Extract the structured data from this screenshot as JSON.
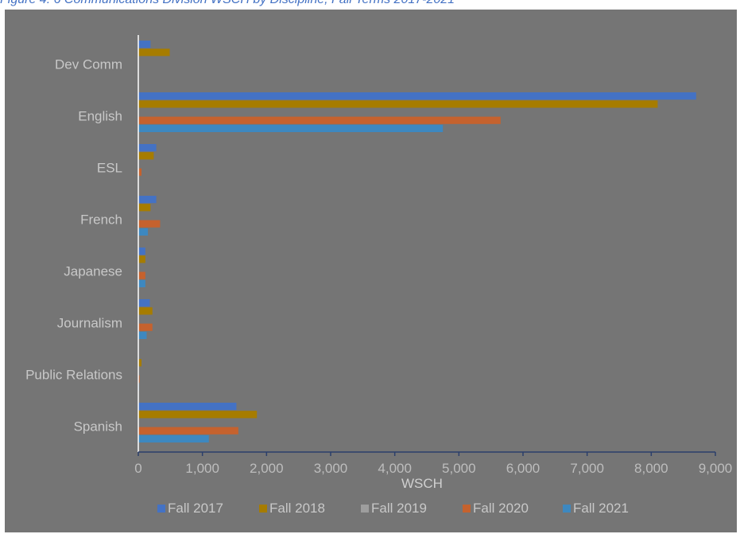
{
  "caption": "Figure 4: 6 Communications Division WSCH by Discipline, Fall Terms 2017-2021",
  "chart_data": {
    "type": "bar",
    "orientation": "horizontal",
    "title": "",
    "xlabel": "WSCH",
    "ylabel": "",
    "xlim": [
      0,
      9000
    ],
    "xticks": [
      0,
      1000,
      2000,
      3000,
      4000,
      5000,
      6000,
      7000,
      8000,
      9000
    ],
    "xtick_labels": [
      "0",
      "1,000",
      "2,000",
      "3,000",
      "4,000",
      "5,000",
      "6,000",
      "7,000",
      "8,000",
      "9,000"
    ],
    "grid": false,
    "legend_position": "bottom",
    "categories": [
      "Dev Comm",
      "English",
      "ESL",
      "French",
      "Japanese",
      "Journalism",
      "Public Relations",
      "Spanish"
    ],
    "series": [
      {
        "name": "Fall 2017",
        "color": "#4472c4",
        "values": [
          190,
          8700,
          280,
          280,
          110,
          180,
          0,
          1530
        ]
      },
      {
        "name": "Fall 2018",
        "color": "#a67c00",
        "values": [
          490,
          8100,
          240,
          190,
          110,
          220,
          50,
          1850
        ]
      },
      {
        "name": "Fall 2019",
        "color": "#9e9e9e",
        "values": [
          0,
          0,
          0,
          0,
          0,
          0,
          0,
          0
        ]
      },
      {
        "name": "Fall 2020",
        "color": "#c5622e",
        "values": [
          0,
          5650,
          50,
          340,
          110,
          220,
          20,
          1560
        ]
      },
      {
        "name": "Fall 2021",
        "color": "#3d88c0",
        "values": [
          0,
          4750,
          0,
          150,
          110,
          130,
          10,
          1100
        ]
      }
    ]
  }
}
